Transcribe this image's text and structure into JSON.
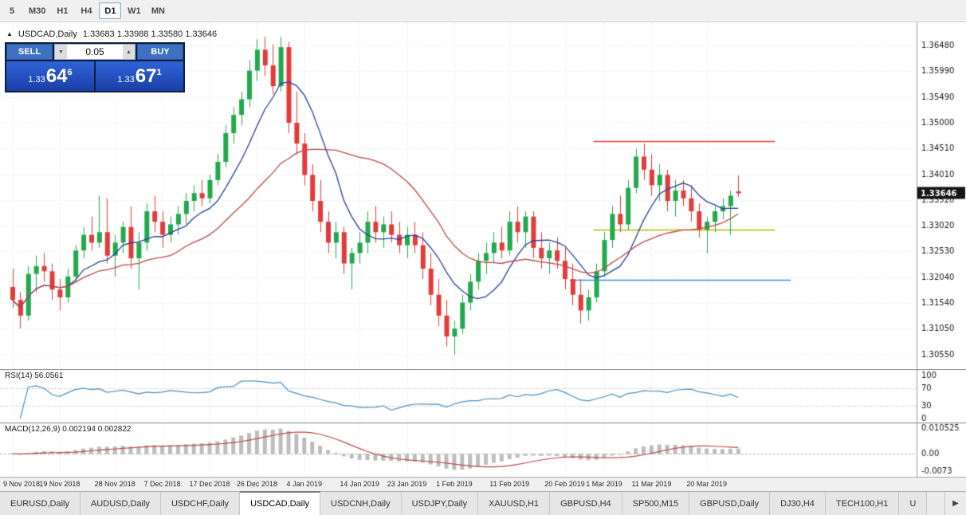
{
  "toolbar": {
    "timeframes": [
      {
        "label": "5"
      },
      {
        "label": "M30"
      },
      {
        "label": "H1"
      },
      {
        "label": "H4"
      },
      {
        "label": "D1"
      },
      {
        "label": "W1"
      },
      {
        "label": "MN"
      }
    ],
    "active_index": 4
  },
  "chart": {
    "marker_icon": "▲",
    "symbol": "USDCAD,Daily",
    "ohlc": "1.33683 1.33988 1.33580 1.33646"
  },
  "trade_panel": {
    "sell_label": "SELL",
    "buy_label": "BUY",
    "volume": "0.05",
    "caret_down_icon": "▼",
    "caret_up_icon": "▲",
    "sell_price": {
      "base": "1.33",
      "pips": "64",
      "frac": "6"
    },
    "buy_price": {
      "base": "1.33",
      "pips": "67",
      "frac": "1"
    }
  },
  "indicators": {
    "rsi": {
      "label": "RSI(14) 56.0561",
      "axis_labels": [
        "100",
        "70",
        "30",
        "0"
      ],
      "dashed_levels": [
        70,
        30
      ]
    },
    "macd": {
      "label": "MACD(12,26,9) 0.002194 0.002822",
      "axis_labels": [
        "0.010525",
        "0.00",
        "-0.0073"
      ]
    }
  },
  "chart_data": {
    "type": "candlestick",
    "symbol": "USDCAD",
    "timeframe": "Daily",
    "ylim": [
      1.3035,
      1.3685
    ],
    "price_axis_labels": [
      "1.36480",
      "1.35990",
      "1.35490",
      "1.35000",
      "1.34510",
      "1.34010",
      "1.33520",
      "1.33020",
      "1.32530",
      "1.32040",
      "1.31540",
      "1.31050",
      "1.30550"
    ],
    "current_price": "1.33646",
    "candles": [
      [
        1.3185,
        1.322,
        1.3145,
        1.316
      ],
      [
        1.316,
        1.3175,
        1.3105,
        1.313
      ],
      [
        1.313,
        1.3225,
        1.312,
        1.321
      ],
      [
        1.321,
        1.3245,
        1.3175,
        1.3225
      ],
      [
        1.3225,
        1.325,
        1.3195,
        1.3215
      ],
      [
        1.3215,
        1.323,
        1.316,
        1.318
      ],
      [
        1.318,
        1.32,
        1.314,
        1.3165
      ],
      [
        1.3165,
        1.322,
        1.3155,
        1.3205
      ],
      [
        1.3205,
        1.3265,
        1.3195,
        1.3255
      ],
      [
        1.3255,
        1.33,
        1.324,
        1.3285
      ],
      [
        1.3285,
        1.332,
        1.3255,
        1.327
      ],
      [
        1.327,
        1.336,
        1.326,
        1.329
      ],
      [
        1.329,
        1.3355,
        1.323,
        1.3245
      ],
      [
        1.3245,
        1.3285,
        1.3205,
        1.327
      ],
      [
        1.327,
        1.331,
        1.325,
        1.33
      ],
      [
        1.33,
        1.334,
        1.322,
        1.324
      ],
      [
        1.324,
        1.329,
        1.318,
        1.327
      ],
      [
        1.327,
        1.3345,
        1.3255,
        1.333
      ],
      [
        1.333,
        1.336,
        1.329,
        1.331
      ],
      [
        1.331,
        1.333,
        1.326,
        1.3285
      ],
      [
        1.3285,
        1.332,
        1.327,
        1.3305
      ],
      [
        1.3305,
        1.334,
        1.3285,
        1.3325
      ],
      [
        1.3325,
        1.3365,
        1.3305,
        1.335
      ],
      [
        1.335,
        1.338,
        1.333,
        1.3365
      ],
      [
        1.3365,
        1.339,
        1.334,
        1.3355
      ],
      [
        1.3355,
        1.34,
        1.3345,
        1.339
      ],
      [
        1.339,
        1.344,
        1.338,
        1.3425
      ],
      [
        1.3425,
        1.3495,
        1.3415,
        1.348
      ],
      [
        1.348,
        1.353,
        1.346,
        1.3515
      ],
      [
        1.3515,
        1.356,
        1.3495,
        1.3545
      ],
      [
        1.3545,
        1.362,
        1.353,
        1.36
      ],
      [
        1.36,
        1.366,
        1.358,
        1.364
      ],
      [
        1.364,
        1.3665,
        1.359,
        1.361
      ],
      [
        1.361,
        1.365,
        1.3555,
        1.357
      ],
      [
        1.357,
        1.3665,
        1.356,
        1.3645
      ],
      [
        1.3645,
        1.3655,
        1.348,
        1.35
      ],
      [
        1.35,
        1.356,
        1.344,
        1.346
      ],
      [
        1.346,
        1.348,
        1.338,
        1.34
      ],
      [
        1.34,
        1.342,
        1.333,
        1.335
      ],
      [
        1.335,
        1.339,
        1.329,
        1.331
      ],
      [
        1.331,
        1.333,
        1.325,
        1.327
      ],
      [
        1.327,
        1.331,
        1.324,
        1.329
      ],
      [
        1.329,
        1.33,
        1.321,
        1.323
      ],
      [
        1.323,
        1.326,
        1.318,
        1.325
      ],
      [
        1.325,
        1.329,
        1.323,
        1.327
      ],
      [
        1.327,
        1.333,
        1.325,
        1.331
      ],
      [
        1.331,
        1.334,
        1.327,
        1.329
      ],
      [
        1.329,
        1.332,
        1.326,
        1.3305
      ],
      [
        1.3305,
        1.333,
        1.327,
        1.3285
      ],
      [
        1.3285,
        1.331,
        1.325,
        1.3265
      ],
      [
        1.3265,
        1.33,
        1.324,
        1.3285
      ],
      [
        1.3285,
        1.331,
        1.325,
        1.3265
      ],
      [
        1.3265,
        1.329,
        1.32,
        1.322
      ],
      [
        1.322,
        1.325,
        1.315,
        1.317
      ],
      [
        1.317,
        1.32,
        1.311,
        1.313
      ],
      [
        1.313,
        1.316,
        1.307,
        1.309
      ],
      [
        1.309,
        1.312,
        1.3055,
        1.3105
      ],
      [
        1.3105,
        1.317,
        1.3095,
        1.3155
      ],
      [
        1.3155,
        1.321,
        1.314,
        1.3195
      ],
      [
        1.3195,
        1.325,
        1.318,
        1.3235
      ],
      [
        1.3235,
        1.327,
        1.321,
        1.325
      ],
      [
        1.325,
        1.329,
        1.323,
        1.327
      ],
      [
        1.327,
        1.33,
        1.324,
        1.3255
      ],
      [
        1.3255,
        1.333,
        1.3245,
        1.331
      ],
      [
        1.331,
        1.334,
        1.327,
        1.329
      ],
      [
        1.329,
        1.333,
        1.326,
        1.332
      ],
      [
        1.332,
        1.333,
        1.324,
        1.326
      ],
      [
        1.326,
        1.329,
        1.322,
        1.324
      ],
      [
        1.324,
        1.327,
        1.321,
        1.3255
      ],
      [
        1.3255,
        1.328,
        1.322,
        1.3235
      ],
      [
        1.3235,
        1.326,
        1.318,
        1.32
      ],
      [
        1.32,
        1.323,
        1.315,
        1.317
      ],
      [
        1.317,
        1.32,
        1.3115,
        1.314
      ],
      [
        1.314,
        1.318,
        1.312,
        1.3165
      ],
      [
        1.3165,
        1.323,
        1.3155,
        1.3215
      ],
      [
        1.3215,
        1.329,
        1.3205,
        1.3275
      ],
      [
        1.3275,
        1.334,
        1.326,
        1.3325
      ],
      [
        1.3325,
        1.336,
        1.329,
        1.3305
      ],
      [
        1.3305,
        1.339,
        1.3295,
        1.3375
      ],
      [
        1.3375,
        1.345,
        1.3365,
        1.3435
      ],
      [
        1.3435,
        1.346,
        1.339,
        1.341
      ],
      [
        1.341,
        1.344,
        1.336,
        1.338
      ],
      [
        1.338,
        1.342,
        1.335,
        1.34
      ],
      [
        1.34,
        1.341,
        1.333,
        1.335
      ],
      [
        1.335,
        1.339,
        1.332,
        1.337
      ],
      [
        1.337,
        1.339,
        1.334,
        1.3355
      ],
      [
        1.3355,
        1.338,
        1.331,
        1.333
      ],
      [
        1.333,
        1.3345,
        1.328,
        1.3295
      ],
      [
        1.3295,
        1.332,
        1.325,
        1.331
      ],
      [
        1.331,
        1.334,
        1.329,
        1.333
      ],
      [
        1.333,
        1.3355,
        1.3315,
        1.334
      ],
      [
        1.334,
        1.337,
        1.3285,
        1.336
      ],
      [
        1.33683,
        1.33988,
        1.3358,
        1.33646
      ]
    ],
    "date_labels": [
      {
        "index": 0,
        "text": "9 Nov 2018"
      },
      {
        "index": 6,
        "text": "19 Nov 2018"
      },
      {
        "index": 13,
        "text": "28 Nov 2018"
      },
      {
        "index": 19,
        "text": "7 Dec 2018"
      },
      {
        "index": 25,
        "text": "17 Dec 2018"
      },
      {
        "index": 31,
        "text": "26 Dec 2018"
      },
      {
        "index": 37,
        "text": "4 Jan 2019"
      },
      {
        "index": 44,
        "text": "14 Jan 2019"
      },
      {
        "index": 50,
        "text": "23 Jan 2019"
      },
      {
        "index": 56,
        "text": "1 Feb 2019"
      },
      {
        "index": 63,
        "text": "11 Feb 2019"
      },
      {
        "index": 70,
        "text": "20 Feb 2019"
      },
      {
        "index": 75,
        "text": "1 Mar 2019"
      },
      {
        "index": 81,
        "text": "11 Mar 2019"
      },
      {
        "index": 88,
        "text": "20 Mar 2019"
      }
    ],
    "moving_averages": [
      {
        "name": "MA fast",
        "period": 8,
        "color": "#2b3f9e"
      },
      {
        "name": "MA slow",
        "period": 21,
        "color": "#c04848"
      }
    ],
    "hlines": [
      {
        "name": "resistance-line",
        "price": 1.3465,
        "from_index": 74,
        "to_index": 97,
        "color": "#e84040"
      },
      {
        "name": "pivot-line",
        "price": 1.3295,
        "from_index": 74,
        "to_index": 97,
        "color": "#b8bc00"
      },
      {
        "name": "support-line",
        "price": 1.3198,
        "from_index": 71,
        "to_index": 99,
        "color": "#3d8fd9"
      }
    ],
    "colors": {
      "bull": "#22a94e",
      "bear": "#e23b3b",
      "grid": "#e9e9e9",
      "axis_text": "#1a1a1a",
      "badge_bg": "#141414",
      "badge_text": "#ffffff",
      "rsi_line": "#4a8fc7",
      "macd_hist": "#bdbdbd",
      "macd_signal": "#c04848"
    }
  },
  "tabs": {
    "items": [
      {
        "label": "EURUSD,Daily"
      },
      {
        "label": "AUDUSD,Daily"
      },
      {
        "label": "USDCHF,Daily"
      },
      {
        "label": "USDCAD,Daily"
      },
      {
        "label": "USDCNH,Daily"
      },
      {
        "label": "USDJPY,Daily"
      },
      {
        "label": "XAUUSD,H1"
      },
      {
        "label": "GBPUSD,H4"
      },
      {
        "label": "SP500,M15"
      },
      {
        "label": "GBPUSD,Daily"
      },
      {
        "label": "DJ30,H4"
      },
      {
        "label": "TECH100,H1"
      },
      {
        "label": "U"
      }
    ],
    "active_index": 3,
    "scroll_right_icon": "▶"
  }
}
